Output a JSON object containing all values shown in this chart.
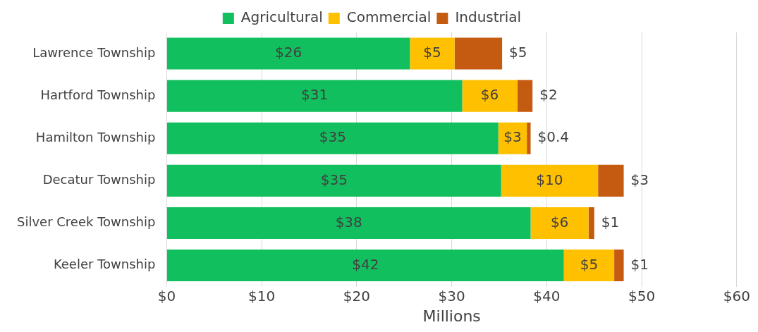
{
  "chart_data": {
    "type": "bar",
    "orientation": "horizontal",
    "stacked": true,
    "xlabel": "Millions",
    "categories": [
      "Lawrence Township",
      "Hartford Township",
      "Hamilton Township",
      "Decatur Township",
      "Silver Creek Township",
      "Keeler Township"
    ],
    "series": [
      {
        "name": "Agricultural",
        "color": "#12bf5f",
        "values": [
          25.6,
          31.1,
          34.9,
          35.2,
          38.3,
          41.8
        ],
        "value_labels": [
          "$26",
          "$31",
          "$35",
          "$35",
          "$38",
          "$42"
        ]
      },
      {
        "name": "Commercial",
        "color": "#ffc000",
        "values": [
          4.7,
          5.8,
          3.0,
          10.2,
          6.1,
          5.3
        ],
        "value_labels": [
          "$5",
          "$6",
          "$3",
          "$10",
          "$6",
          "$5"
        ]
      },
      {
        "name": "Industrial",
        "color": "#c55a11",
        "values": [
          5.0,
          1.6,
          0.4,
          2.7,
          0.6,
          1.0
        ],
        "value_labels": [
          "$5",
          "$2",
          "$0.4",
          "$3",
          "$1",
          "$1"
        ]
      }
    ],
    "xlim": [
      0,
      60
    ],
    "xticks": [
      {
        "value": 0,
        "label": "$0"
      },
      {
        "value": 10,
        "label": "$10"
      },
      {
        "value": 20,
        "label": "$20"
      },
      {
        "value": 30,
        "label": "$30"
      },
      {
        "value": 40,
        "label": "$40"
      },
      {
        "value": 50,
        "label": "$50"
      },
      {
        "value": 60,
        "label": "$60"
      }
    ],
    "grid": "x",
    "legend": "top"
  }
}
